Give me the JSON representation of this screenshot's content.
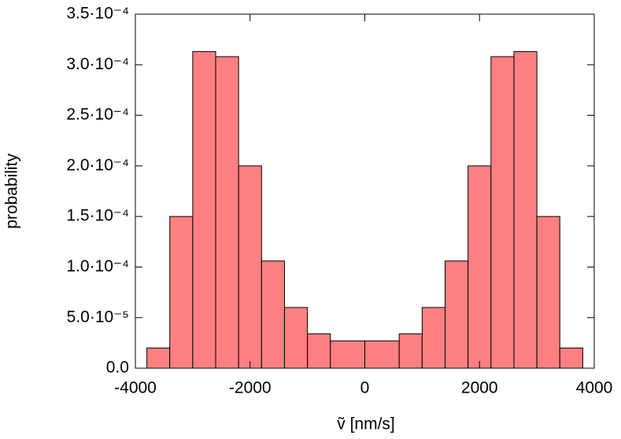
{
  "chart_data": {
    "type": "histogram",
    "xlabel": "ṽ [nm/s]",
    "ylabel": "probability",
    "bins": [
      -3800,
      -3400,
      -3000,
      -2600,
      -2200,
      -1800,
      -1400,
      -1000,
      -600,
      0,
      600,
      1000,
      1400,
      1800,
      2200,
      2600,
      3000,
      3400,
      3800
    ],
    "values": [
      2e-05,
      0.00015,
      0.000313,
      0.000308,
      0.0002,
      0.000106,
      6e-05,
      3.4e-05,
      2.7e-05,
      2.7e-05,
      3.4e-05,
      6e-05,
      0.000106,
      0.0002,
      0.000308,
      0.000313,
      0.00015,
      2e-05
    ],
    "color": "#ff8080",
    "xlim": [
      -4000,
      4000
    ],
    "xticks": [
      -4000,
      -2000,
      0,
      2000,
      4000
    ],
    "ylim": [
      0,
      0.00035
    ],
    "yticks": [
      {
        "value": 0,
        "label": "0.0"
      },
      {
        "value": 5e-05,
        "label": "5.0·10⁻⁵"
      },
      {
        "value": 0.0001,
        "label": "1.0·10⁻⁴"
      },
      {
        "value": 0.00015,
        "label": "1.5·10⁻⁴"
      },
      {
        "value": 0.0002,
        "label": "2.0·10⁻⁴"
      },
      {
        "value": 0.00025,
        "label": "2.5·10⁻⁴"
      },
      {
        "value": 0.0003,
        "label": "3.0·10⁻⁴"
      },
      {
        "value": 0.00035,
        "label": "3.5·10⁻⁴"
      }
    ]
  }
}
